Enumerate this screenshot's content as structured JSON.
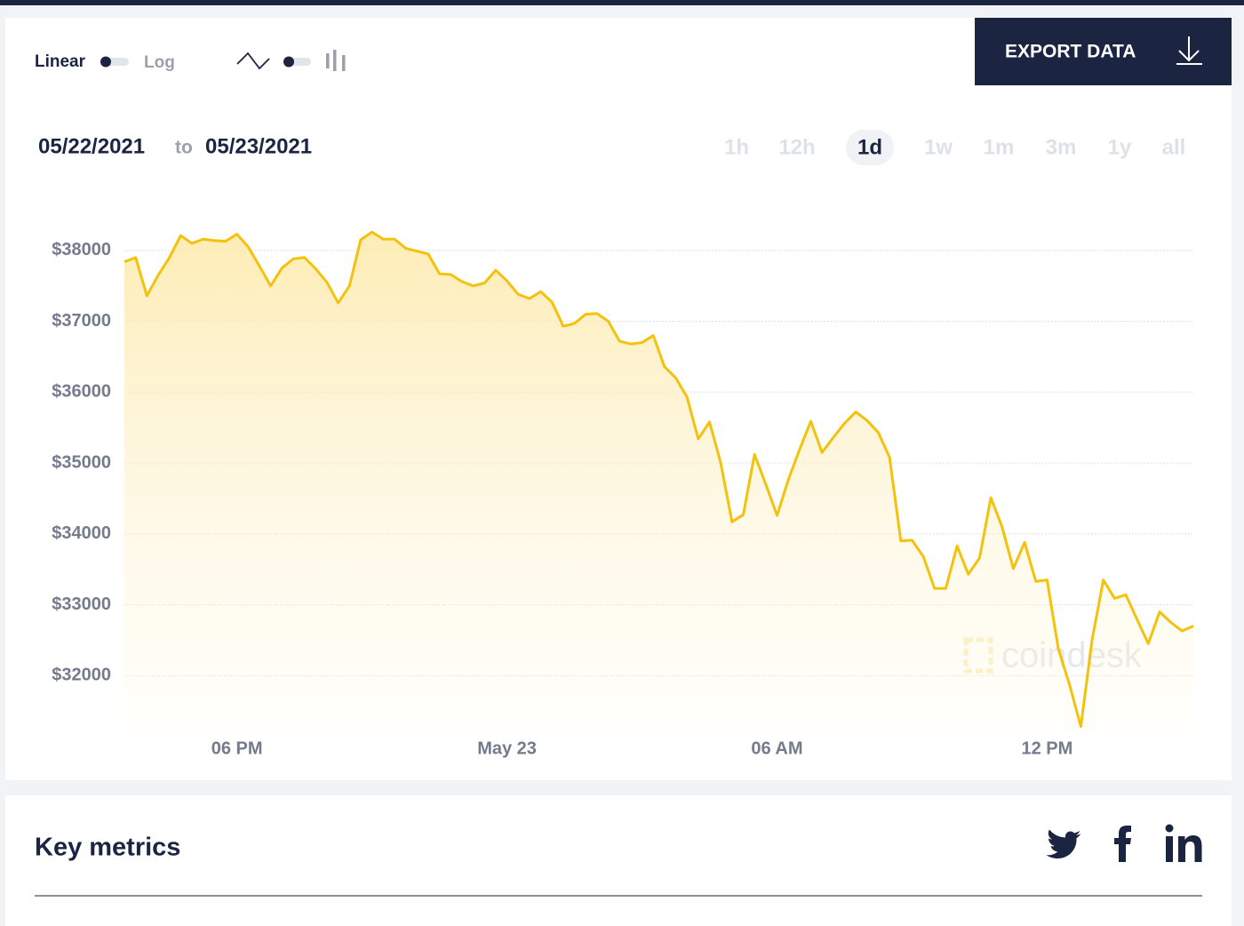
{
  "toolbar": {
    "scale_linear": "Linear",
    "scale_log": "Log",
    "export": "EXPORT DATA"
  },
  "date_range": {
    "from": "05/22/2021",
    "to_word": "to",
    "to": "05/23/2021"
  },
  "ranges": [
    {
      "label": "1h"
    },
    {
      "label": "12h"
    },
    {
      "label": "1d",
      "active": true
    },
    {
      "label": "1w"
    },
    {
      "label": "1m"
    },
    {
      "label": "3m"
    },
    {
      "label": "1y"
    },
    {
      "label": "all"
    }
  ],
  "chart_data": {
    "type": "line",
    "color": "#f4c20d",
    "grid": true,
    "watermark": "coindesk",
    "categories": [
      null,
      null,
      null,
      null,
      null,
      null,
      null,
      null,
      null,
      null,
      "06 PM",
      null,
      null,
      null,
      null,
      null,
      null,
      null,
      null,
      null,
      null,
      null,
      null,
      null,
      null,
      null,
      null,
      null,
      null,
      null,
      null,
      null,
      null,
      null,
      "May 23",
      null,
      null,
      null,
      null,
      null,
      null,
      null,
      null,
      null,
      null,
      null,
      null,
      null,
      null,
      null,
      null,
      null,
      null,
      null,
      null,
      null,
      null,
      null,
      "06 AM",
      null,
      null,
      null,
      null,
      null,
      null,
      null,
      null,
      null,
      null,
      null,
      null,
      null,
      null,
      null,
      null,
      null,
      null,
      null,
      null,
      null,
      null,
      null,
      "12 PM",
      null,
      null,
      null,
      null,
      null,
      null,
      null,
      null,
      null,
      null,
      null,
      null,
      null
    ],
    "values": [
      37840,
      37900,
      37360,
      37650,
      37900,
      38210,
      38100,
      38160,
      38140,
      38130,
      38230,
      38050,
      37780,
      37500,
      37750,
      37880,
      37900,
      37740,
      37550,
      37260,
      37500,
      38150,
      38260,
      38160,
      38160,
      38030,
      37990,
      37950,
      37670,
      37660,
      37560,
      37500,
      37540,
      37720,
      37570,
      37380,
      37320,
      37420,
      37270,
      36930,
      36970,
      37100,
      37110,
      37000,
      36720,
      36680,
      36700,
      36800,
      36360,
      36200,
      35930,
      35340,
      35580,
      35000,
      34170,
      34270,
      35120,
      34700,
      34260,
      34760,
      35190,
      35590,
      35150,
      35360,
      35560,
      35720,
      35600,
      35430,
      35080,
      33900,
      33910,
      33680,
      33230,
      33230,
      33830,
      33430,
      33660,
      34510,
      34100,
      33510,
      33880,
      33330,
      33350,
      32380,
      31870,
      31280,
      32500,
      33350,
      33090,
      33140,
      32790,
      32450,
      32900,
      32750,
      32630,
      32700
    ],
    "ylim": [
      31200,
      38700
    ],
    "yticks": [
      {
        "value": 32000,
        "label": "$32000"
      },
      {
        "value": 33000,
        "label": "$33000"
      },
      {
        "value": 34000,
        "label": "$34000"
      },
      {
        "value": 35000,
        "label": "$35000"
      },
      {
        "value": 36000,
        "label": "$36000"
      },
      {
        "value": 37000,
        "label": "$37000"
      },
      {
        "value": 38000,
        "label": "$38000"
      }
    ]
  },
  "metrics": {
    "title": "Key metrics"
  }
}
